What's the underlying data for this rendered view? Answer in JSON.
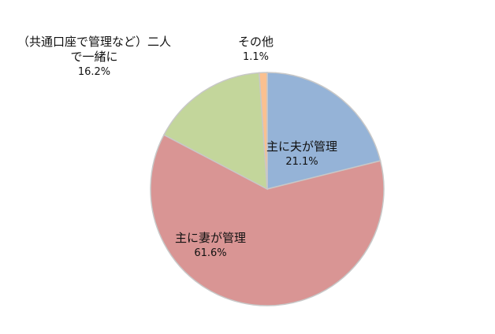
{
  "chart_data": {
    "type": "pie",
    "slices": [
      {
        "label": "主に夫が管理",
        "value": 21.1,
        "value_label": "21.1%",
        "color": "#95b3d7"
      },
      {
        "label": "主に妻が管理",
        "value": 61.6,
        "value_label": "61.6%",
        "color": "#d99594"
      },
      {
        "label_line1": "（共通口座で管理など）二人",
        "label_line2": "で一緒に",
        "value": 16.2,
        "value_label": "16.2%",
        "color": "#c3d69b"
      },
      {
        "label": "その他",
        "value": 1.1,
        "value_label": "1.1%",
        "color": "#fac090"
      }
    ],
    "start": "12 o'clock",
    "direction": "clockwise",
    "legend": "none"
  }
}
